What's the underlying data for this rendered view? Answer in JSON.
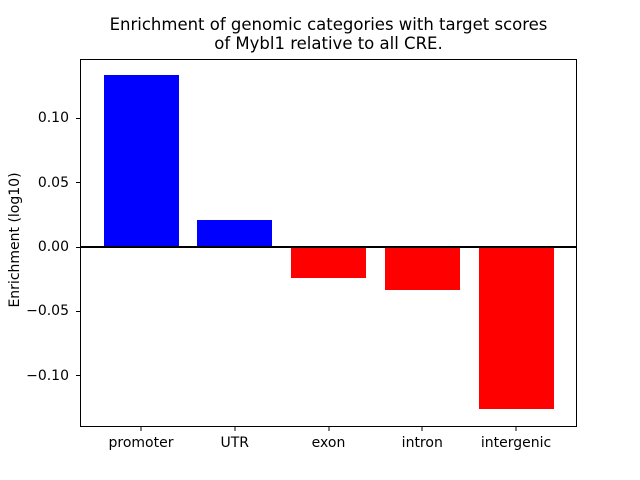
{
  "title": {
    "line1": "Enrichment of genomic categories with target scores",
    "line2": "of Mybl1 relative to all CRE."
  },
  "chart_data": {
    "type": "bar",
    "title": "Enrichment of genomic categories with target scores of Mybl1 relative to all CRE.",
    "xlabel": "",
    "ylabel": "Enrichment (log10)",
    "categories": [
      "promoter",
      "UTR",
      "exon",
      "intron",
      "intergenic"
    ],
    "values": [
      0.134,
      0.021,
      -0.024,
      -0.033,
      -0.126
    ],
    "bar_colors": [
      "#0000ff",
      "#0000ff",
      "#ff0000",
      "#ff0000",
      "#ff0000"
    ],
    "positive_color": "#0000ff",
    "negative_color": "#ff0000",
    "background_color": "#ffffff",
    "spine_color": "#000000",
    "zero_line": true,
    "grid": false,
    "legend": false,
    "bar_width": 0.8,
    "xlim": [
      -0.64,
      4.64
    ],
    "ylim": [
      -0.139,
      0.1454
    ],
    "yticks": [
      {
        "value": 0.1,
        "label": "0.10"
      },
      {
        "value": 0.05,
        "label": "0.05"
      },
      {
        "value": 0.0,
        "label": "0.00"
      },
      {
        "value": -0.05,
        "label": "−0.05"
      },
      {
        "value": -0.1,
        "label": "−0.10"
      }
    ]
  }
}
